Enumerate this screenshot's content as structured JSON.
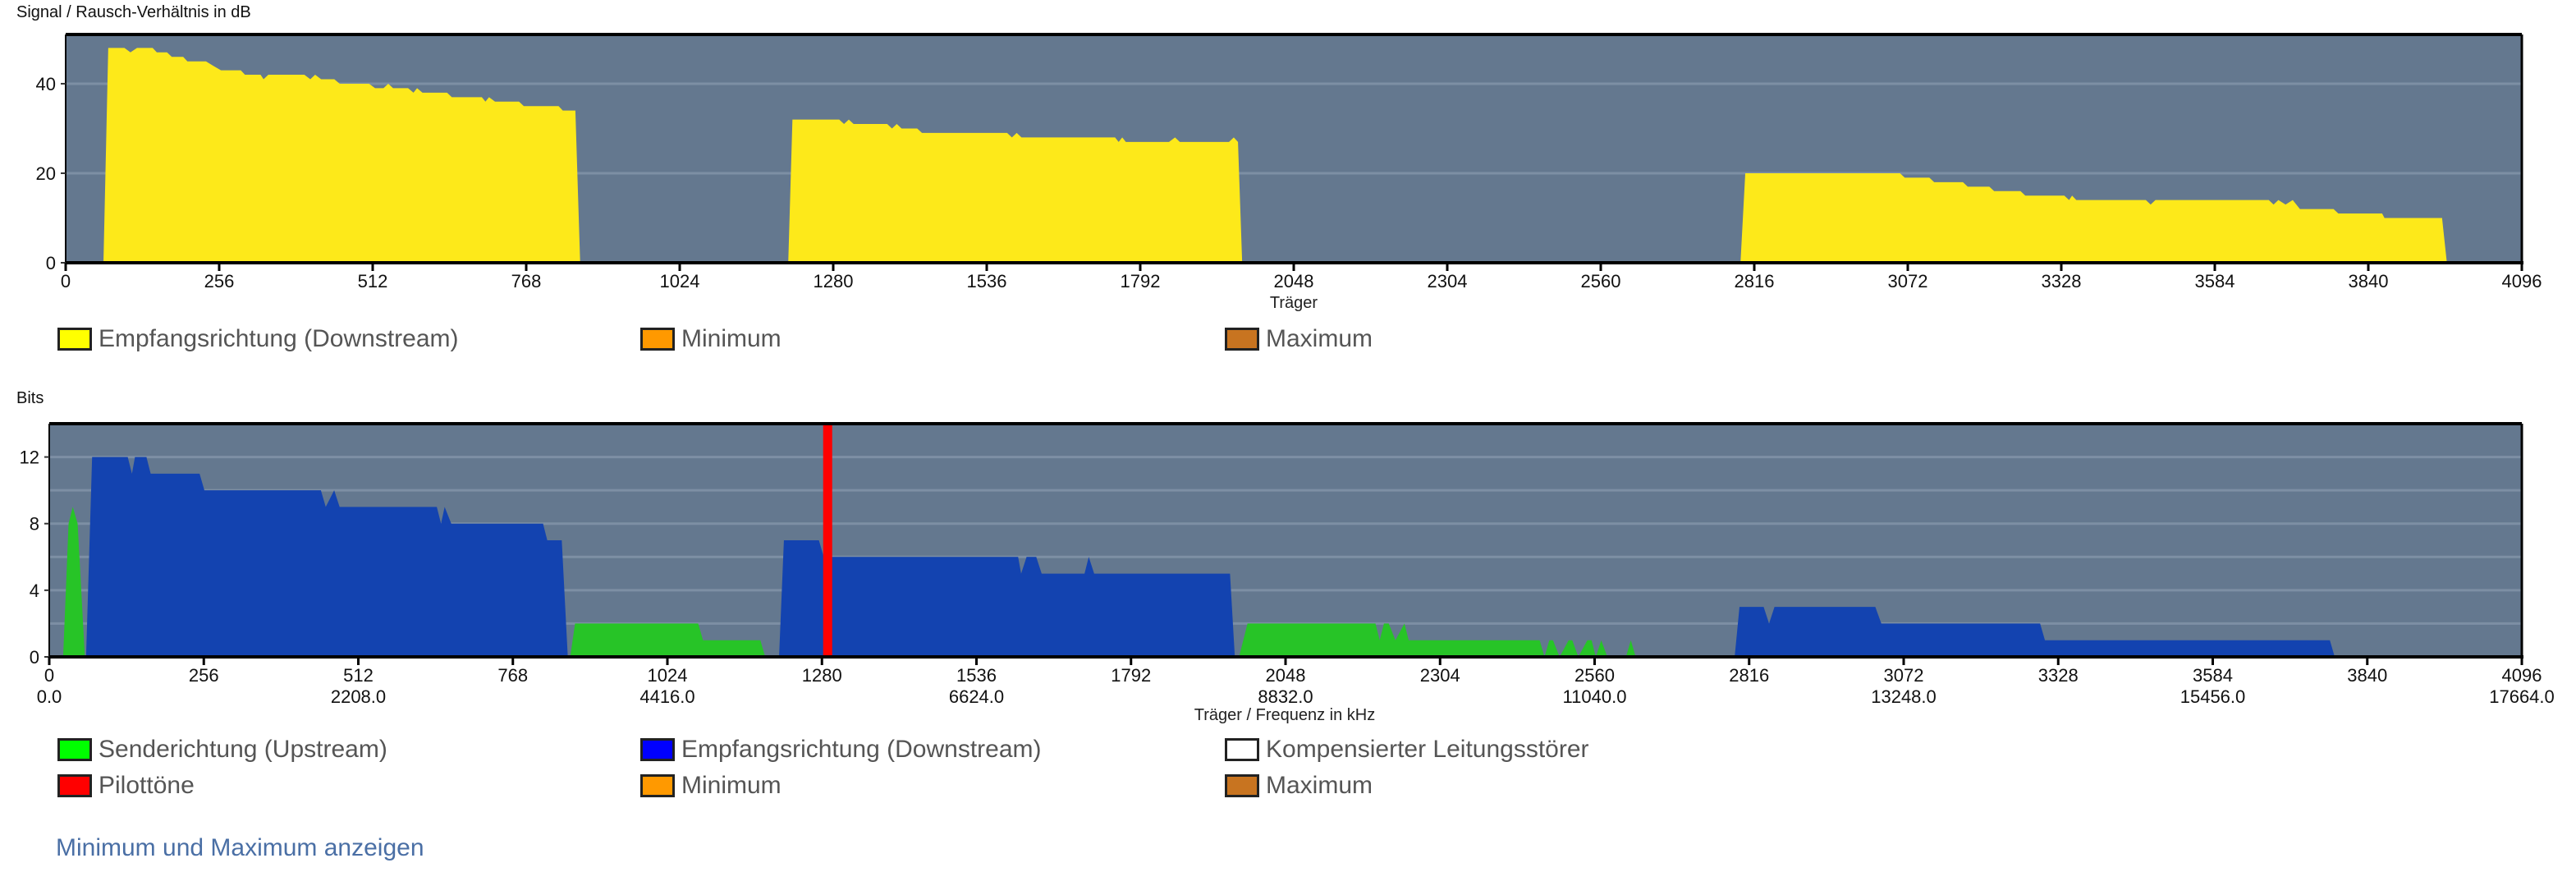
{
  "chart_data": [
    {
      "type": "area",
      "title": "Signal / Rausch-Verhältnis in dB",
      "xlabel": "Träger",
      "ylabel": "Signal / Rausch-Verhältnis in dB",
      "xlim": [
        0,
        4096
      ],
      "ylim": [
        0,
        51
      ],
      "x_ticks": [
        "0",
        "256",
        "512",
        "768",
        "1024",
        "1280",
        "1536",
        "1792",
        "2048",
        "2304",
        "2560",
        "2816",
        "3072",
        "3328",
        "3584",
        "3840",
        "4096"
      ],
      "y_ticks": [
        0,
        20,
        40
      ],
      "grid": true,
      "series": [
        {
          "name": "Empfangsrichtung (Downstream)",
          "color": "#fde91a",
          "points": [
            [
              63,
              0
            ],
            [
              71,
              48
            ],
            [
              98,
              48
            ],
            [
              108,
              47
            ],
            [
              119,
              48
            ],
            [
              145,
              48
            ],
            [
              152,
              47
            ],
            [
              169,
              47
            ],
            [
              177,
              46
            ],
            [
              196,
              46
            ],
            [
              203,
              45
            ],
            [
              234,
              45
            ],
            [
              246,
              44
            ],
            [
              259,
              43
            ],
            [
              292,
              43
            ],
            [
              299,
              42
            ],
            [
              325,
              42
            ],
            [
              330,
              41
            ],
            [
              338,
              42
            ],
            [
              398,
              42
            ],
            [
              408,
              41
            ],
            [
              416,
              42
            ],
            [
              426,
              41
            ],
            [
              448,
              41
            ],
            [
              457,
              40
            ],
            [
              506,
              40
            ],
            [
              516,
              39
            ],
            [
              530,
              39
            ],
            [
              538,
              40
            ],
            [
              546,
              39
            ],
            [
              571,
              39
            ],
            [
              580,
              38
            ],
            [
              586,
              39
            ],
            [
              595,
              38
            ],
            [
              636,
              38
            ],
            [
              644,
              37
            ],
            [
              694,
              37
            ],
            [
              700,
              36
            ],
            [
              706,
              37
            ],
            [
              716,
              36
            ],
            [
              756,
              36
            ],
            [
              764,
              35
            ],
            [
              822,
              35
            ],
            [
              829,
              34
            ],
            [
              850,
              34
            ],
            [
              858,
              0
            ],
            [
              1205,
              0
            ],
            [
              1212,
              32
            ],
            [
              1290,
              32
            ],
            [
              1298,
              31
            ],
            [
              1306,
              32
            ],
            [
              1314,
              31
            ],
            [
              1370,
              31
            ],
            [
              1378,
              30
            ],
            [
              1386,
              31
            ],
            [
              1394,
              30
            ],
            [
              1420,
              30
            ],
            [
              1428,
              29
            ],
            [
              1570,
              29
            ],
            [
              1578,
              28
            ],
            [
              1586,
              29
            ],
            [
              1594,
              28
            ],
            [
              1750,
              28
            ],
            [
              1756,
              27
            ],
            [
              1762,
              28
            ],
            [
              1768,
              27
            ],
            [
              1840,
              27
            ],
            [
              1850,
              28
            ],
            [
              1858,
              27
            ],
            [
              1940,
              27
            ],
            [
              1948,
              28
            ],
            [
              1955,
              27
            ],
            [
              1962,
              0
            ],
            [
              2793,
              0
            ],
            [
              2801,
              20
            ],
            [
              3059,
              20
            ],
            [
              3067,
              19
            ],
            [
              3108,
              19
            ],
            [
              3116,
              18
            ],
            [
              3164,
              18
            ],
            [
              3172,
              17
            ],
            [
              3208,
              17
            ],
            [
              3216,
              16
            ],
            [
              3260,
              16
            ],
            [
              3268,
              15
            ],
            [
              3333,
              15
            ],
            [
              3341,
              14
            ],
            [
              3346,
              15
            ],
            [
              3353,
              14
            ],
            [
              3469,
              14
            ],
            [
              3477,
              13
            ],
            [
              3485,
              14
            ],
            [
              3674,
              14
            ],
            [
              3682,
              13
            ],
            [
              3690,
              14
            ],
            [
              3702,
              13
            ],
            [
              3714,
              14
            ],
            [
              3726,
              12
            ],
            [
              3782,
              12
            ],
            [
              3790,
              11
            ],
            [
              3863,
              11
            ],
            [
              3867,
              10
            ],
            [
              3963,
              10
            ],
            [
              3971,
              0
            ]
          ]
        }
      ],
      "legend": [
        {
          "label": "Empfangsrichtung (Downstream)",
          "color": "#ffff00"
        },
        {
          "label": "Minimum",
          "color": "#ff9900"
        },
        {
          "label": "Maximum",
          "color": "#c87420"
        }
      ]
    },
    {
      "type": "area",
      "title": "Bits",
      "xlabel": "Träger / Frequenz in kHz",
      "ylabel": "Bits",
      "xlim": [
        0,
        4096
      ],
      "ylim": [
        0,
        14
      ],
      "x_ticks": [
        "0",
        "256",
        "512",
        "768",
        "1024",
        "1280",
        "1536",
        "1792",
        "2048",
        "2304",
        "2560",
        "2816",
        "3072",
        "3328",
        "3584",
        "3840",
        "4096"
      ],
      "x_freq_ticks": [
        "0.0",
        "2208.0",
        "4416.0",
        "6624.0",
        "8832.0",
        "11040.0",
        "13248.0",
        "15456.0",
        "17664.0"
      ],
      "y_ticks": [
        0,
        4,
        8,
        12
      ],
      "grid": true,
      "series": [
        {
          "name": "Sendericht ung (Upstream)",
          "color": "#27c427",
          "points": [
            [
              23,
              0
            ],
            [
              32,
              8
            ],
            [
              39,
              9
            ],
            [
              47,
              8
            ],
            [
              59,
              0
            ],
            [
              863,
              0
            ],
            [
              871,
              2
            ],
            [
              1075,
              2
            ],
            [
              1083,
              1
            ],
            [
              1178,
              1
            ],
            [
              1186,
              0
            ],
            [
              1971,
              0
            ],
            [
              1985,
              2
            ],
            [
              2197,
              2
            ],
            [
              2204,
              1
            ],
            [
              2211,
              2
            ],
            [
              2219,
              2
            ],
            [
              2230,
              1
            ],
            [
              2245,
              2
            ],
            [
              2252,
              1
            ],
            [
              2469,
              1
            ],
            [
              2477,
              0
            ],
            [
              2485,
              1
            ],
            [
              2491,
              1
            ],
            [
              2502,
              0
            ],
            [
              2517,
              1
            ],
            [
              2523,
              1
            ],
            [
              2533,
              0
            ],
            [
              2548,
              1
            ],
            [
              2555,
              1
            ],
            [
              2562,
              0
            ],
            [
              2571,
              1
            ],
            [
              2581,
              0
            ],
            [
              2612,
              0
            ],
            [
              2620,
              1
            ],
            [
              2628,
              0
            ]
          ]
        },
        {
          "name": "Empfangsrichtung (Downstream)",
          "color": "#1343b0",
          "points": [
            [
              61,
              0
            ],
            [
              71,
              12
            ],
            [
              130,
              12
            ],
            [
              137,
              11
            ],
            [
              142,
              12
            ],
            [
              161,
              12
            ],
            [
              168,
              11
            ],
            [
              249,
              11
            ],
            [
              257,
              10
            ],
            [
              450,
              10
            ],
            [
              458,
              9
            ],
            [
              472,
              10
            ],
            [
              481,
              9
            ],
            [
              642,
              9
            ],
            [
              649,
              8
            ],
            [
              655,
              9
            ],
            [
              666,
              8
            ],
            [
              818,
              8
            ],
            [
              825,
              7
            ],
            [
              849,
              7
            ],
            [
              859,
              0
            ],
            [
              1209,
              0
            ],
            [
              1217,
              7
            ],
            [
              1275,
              7
            ],
            [
              1283,
              6
            ],
            [
              1605,
              6
            ],
            [
              1610,
              5
            ],
            [
              1619,
              6
            ],
            [
              1635,
              6
            ],
            [
              1644,
              5
            ],
            [
              1715,
              5
            ],
            [
              1722,
              6
            ],
            [
              1731,
              5
            ],
            [
              1956,
              5
            ],
            [
              1964,
              0
            ],
            [
              2792,
              0
            ],
            [
              2800,
              3
            ],
            [
              2840,
              3
            ],
            [
              2849,
              2
            ],
            [
              2858,
              3
            ],
            [
              3025,
              3
            ],
            [
              3035,
              2
            ],
            [
              3298,
              2
            ],
            [
              3306,
              1
            ],
            [
              3778,
              1
            ],
            [
              3786,
              0
            ]
          ]
        }
      ],
      "pilot_tones": [
        1282,
        1297
      ],
      "legend": [
        {
          "label": "Senderichtung (Upstream)",
          "color": "#00ff00"
        },
        {
          "label": "Empfangsrichtung (Downstream)",
          "color": "#0000ff"
        },
        {
          "label": "Kompensierter Leitungsstörer",
          "color": "#ffffff"
        },
        {
          "label": "Pilottöne",
          "color": "#ff0000"
        },
        {
          "label": "Minimum",
          "color": "#ff9900"
        },
        {
          "label": "Maximum",
          "color": "#c87420"
        }
      ]
    }
  ],
  "link": "Minimum und Maximum anzeigen"
}
